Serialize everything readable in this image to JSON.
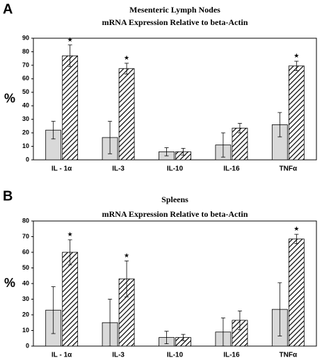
{
  "chart_data": [
    {
      "type": "bar",
      "panel": "A",
      "title": "Mesenteric Lymph Nodes",
      "subtitle": "mRNA Expression Relative to beta-Actin",
      "ylabel": "%",
      "categories": [
        "IL - 1α",
        "IL-3",
        "IL-10",
        "IL-16",
        "TNFα"
      ],
      "series": [
        {
          "color": "#d9d9d9",
          "values": [
            22,
            16.5,
            6,
            11,
            26
          ],
          "errors": [
            6.5,
            12,
            3,
            9,
            9
          ]
        },
        {
          "color": "#000000",
          "hatch": true,
          "values": [
            77,
            67.5,
            6,
            23.5,
            69.5
          ],
          "errors": [
            8,
            4,
            2.5,
            3.5,
            3.5
          ],
          "markers": [
            "★",
            "★",
            null,
            null,
            "★"
          ]
        }
      ],
      "ylim": [
        0,
        90
      ],
      "yticks": [
        0,
        10,
        20,
        30,
        40,
        50,
        60,
        70,
        80,
        90
      ],
      "grid": false
    },
    {
      "type": "bar",
      "panel": "B",
      "title": "Spleens",
      "subtitle": "mRNA Expression Relative to beta-Actin",
      "ylabel": "%",
      "categories": [
        "IL - 1α",
        "IL-3",
        "IL-10",
        "IL-16",
        "TNFα"
      ],
      "series": [
        {
          "color": "#d9d9d9",
          "values": [
            23,
            15,
            5.5,
            9,
            23.5
          ],
          "errors": [
            15,
            15,
            4,
            9,
            17
          ]
        },
        {
          "color": "#000000",
          "hatch": true,
          "values": [
            60,
            43,
            5.5,
            16.5,
            68.5
          ],
          "errors": [
            8,
            11.5,
            2,
            6,
            3
          ],
          "markers": [
            "★",
            "★",
            null,
            null,
            "★"
          ]
        }
      ],
      "ylim": [
        0,
        80
      ],
      "yticks": [
        0,
        10,
        20,
        30,
        40,
        50,
        60,
        70,
        80
      ],
      "grid": false
    }
  ]
}
